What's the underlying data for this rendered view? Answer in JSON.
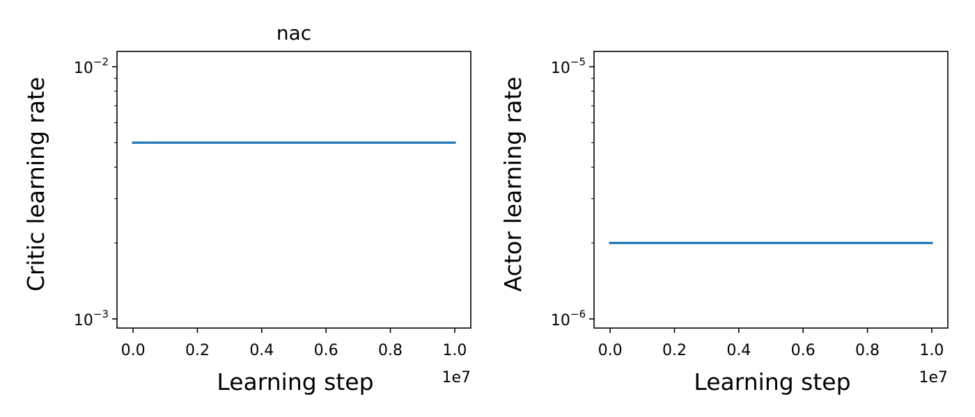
{
  "chart_data": [
    {
      "type": "line",
      "title": "nac",
      "xlabel": "Learning step",
      "ylabel": "Critic learning rate",
      "x_scale": "linear",
      "y_scale": "log",
      "x_offset_label": "1e7",
      "xlim": [
        -0.05,
        1.05
      ],
      "ylim": [
        0.00092,
        0.0115
      ],
      "x_ticks": [
        {
          "value": 0.0,
          "label": "0.0"
        },
        {
          "value": 0.2,
          "label": "0.2"
        },
        {
          "value": 0.4,
          "label": "0.4"
        },
        {
          "value": 0.6,
          "label": "0.6"
        },
        {
          "value": 0.8,
          "label": "0.8"
        },
        {
          "value": 1.0,
          "label": "1.0"
        }
      ],
      "y_ticks": [
        {
          "value": 0.001,
          "base": "10",
          "exp": "−3"
        },
        {
          "value": 0.01,
          "base": "10",
          "exp": "−2"
        }
      ],
      "grid": false,
      "series": [
        {
          "color": "#1f77b4",
          "x": [
            0.0,
            1.0
          ],
          "y": [
            0.005,
            0.005
          ]
        }
      ]
    },
    {
      "type": "line",
      "title": "",
      "xlabel": "Learning step",
      "ylabel": "Actor learning rate",
      "x_scale": "linear",
      "y_scale": "log",
      "x_offset_label": "1e7",
      "xlim": [
        -0.05,
        1.05
      ],
      "ylim": [
        9.2e-07,
        1.15e-05
      ],
      "x_ticks": [
        {
          "value": 0.0,
          "label": "0.0"
        },
        {
          "value": 0.2,
          "label": "0.2"
        },
        {
          "value": 0.4,
          "label": "0.4"
        },
        {
          "value": 0.6,
          "label": "0.6"
        },
        {
          "value": 0.8,
          "label": "0.8"
        },
        {
          "value": 1.0,
          "label": "1.0"
        }
      ],
      "y_ticks": [
        {
          "value": 1e-06,
          "base": "10",
          "exp": "−6"
        },
        {
          "value": 1e-05,
          "base": "10",
          "exp": "−5"
        }
      ],
      "grid": false,
      "series": [
        {
          "color": "#1f77b4",
          "x": [
            0.0,
            1.0
          ],
          "y": [
            2e-06,
            2e-06
          ]
        }
      ]
    }
  ]
}
